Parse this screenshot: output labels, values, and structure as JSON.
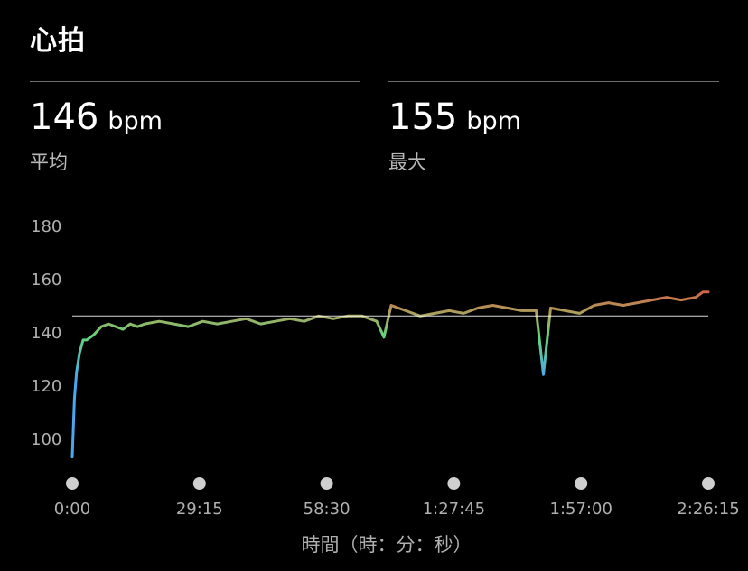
{
  "header": {
    "title": "心拍"
  },
  "stats": {
    "average": {
      "value": "146",
      "unit": "bpm",
      "label": "平均"
    },
    "max": {
      "value": "155",
      "unit": "bpm",
      "label": "最大"
    }
  },
  "chart_data": {
    "type": "line",
    "title": "",
    "xlabel": "時間（時：分：秒）",
    "ylabel": "",
    "ylim": [
      93,
      184
    ],
    "yticks": [
      100,
      120,
      140,
      160,
      180
    ],
    "x_tick_labels": [
      "0:00",
      "29:15",
      "58:30",
      "1:27:45",
      "1:57:00",
      "2:26:15"
    ],
    "xlim_seconds": [
      0,
      8775
    ],
    "reference_line": 146,
    "grid": false,
    "colors": {
      "low": "#4aa8f0",
      "mid": "#64d47c",
      "high": "#e0503c",
      "reference": "#ffffff"
    },
    "series": [
      {
        "x": [
          0,
          30,
          60,
          100,
          150,
          200,
          300,
          400,
          500,
          600,
          700,
          800,
          900,
          1000,
          1200,
          1400,
          1600,
          1800,
          2000,
          2200,
          2400,
          2600,
          2800,
          3000,
          3200,
          3400,
          3600,
          3800,
          4000,
          4200,
          4300,
          4400,
          4600,
          4800,
          5000,
          5200,
          5400,
          5600,
          5800,
          6000,
          6200,
          6400,
          6500,
          6600,
          6800,
          7000,
          7200,
          7400,
          7600,
          7800,
          8000,
          8200,
          8400,
          8600,
          8700,
          8775
        ],
        "y": [
          93,
          115,
          125,
          132,
          137,
          137,
          139,
          142,
          143,
          142,
          141,
          143,
          142,
          143,
          144,
          143,
          142,
          144,
          143,
          144,
          145,
          143,
          144,
          145,
          144,
          146,
          145,
          146,
          146,
          144,
          138,
          150,
          148,
          146,
          147,
          148,
          147,
          149,
          150,
          149,
          148,
          148,
          124,
          149,
          148,
          147,
          150,
          151,
          150,
          151,
          152,
          153,
          152,
          153,
          155,
          155
        ]
      }
    ]
  }
}
